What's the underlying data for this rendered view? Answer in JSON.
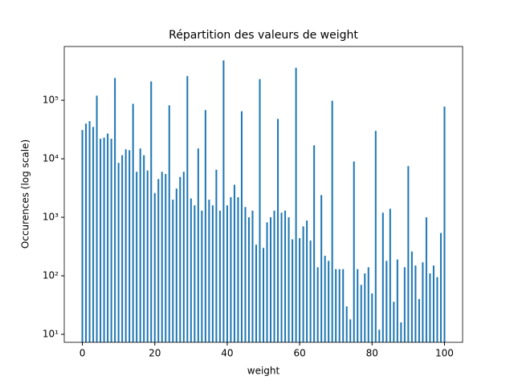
{
  "chart_data": {
    "type": "bar",
    "title": "Répartition des valeurs de weight",
    "xlabel": "weight",
    "ylabel": "Occurences (log scale)",
    "x": [
      0,
      1,
      2,
      3,
      4,
      5,
      6,
      7,
      8,
      9,
      10,
      11,
      12,
      13,
      14,
      15,
      16,
      17,
      18,
      19,
      20,
      21,
      22,
      23,
      24,
      25,
      26,
      27,
      28,
      29,
      30,
      31,
      32,
      33,
      34,
      35,
      36,
      37,
      38,
      39,
      40,
      41,
      42,
      43,
      44,
      45,
      46,
      47,
      48,
      49,
      50,
      51,
      52,
      53,
      54,
      55,
      56,
      57,
      58,
      59,
      60,
      61,
      62,
      63,
      64,
      65,
      66,
      67,
      68,
      69,
      70,
      71,
      72,
      73,
      74,
      75,
      76,
      77,
      78,
      79,
      80,
      81,
      82,
      83,
      84,
      85,
      86,
      87,
      88,
      89,
      90,
      91,
      92,
      93,
      94,
      95,
      96,
      97,
      98,
      99,
      100
    ],
    "values": [
      31000,
      40000,
      44000,
      35000,
      120000,
      22000,
      23000,
      27000,
      22000,
      240000,
      8500,
      11500,
      14500,
      14000,
      87000,
      6000,
      15000,
      11500,
      6300,
      210000,
      2600,
      4500,
      6000,
      5500,
      82000,
      2000,
      3100,
      4900,
      6000,
      260000,
      2100,
      1600,
      15000,
      1300,
      68000,
      2000,
      1600,
      6500,
      1300,
      480000,
      1600,
      2200,
      3600,
      2200,
      65000,
      1500,
      1000,
      1300,
      340,
      230000,
      300,
      820,
      1000,
      1300,
      48000,
      1200,
      1300,
      1000,
      420,
      360000,
      440,
      700,
      880,
      400,
      17000,
      140,
      2400,
      220,
      180,
      98000,
      130,
      130,
      130,
      30,
      18,
      9000,
      130,
      70,
      110,
      140,
      50,
      30000,
      12,
      1200,
      180,
      1400,
      36,
      190,
      16,
      140,
      7500,
      260,
      150,
      40,
      170,
      1000,
      110,
      150,
      95,
      540,
      78000
    ],
    "color": "#1f77b4",
    "bar_width": 0.45,
    "log_y": true,
    "xlim": [
      -5,
      105
    ],
    "xticks": [
      0,
      20,
      40,
      60,
      80,
      100
    ],
    "ylim": [
      7.3,
      830000
    ],
    "yticks": [
      {
        "value": 10,
        "label": "10¹"
      },
      {
        "value": 100,
        "label": "10²"
      },
      {
        "value": 1000,
        "label": "10³"
      },
      {
        "value": 10000,
        "label": "10⁴"
      },
      {
        "value": 100000,
        "label": "10⁵"
      }
    ]
  }
}
